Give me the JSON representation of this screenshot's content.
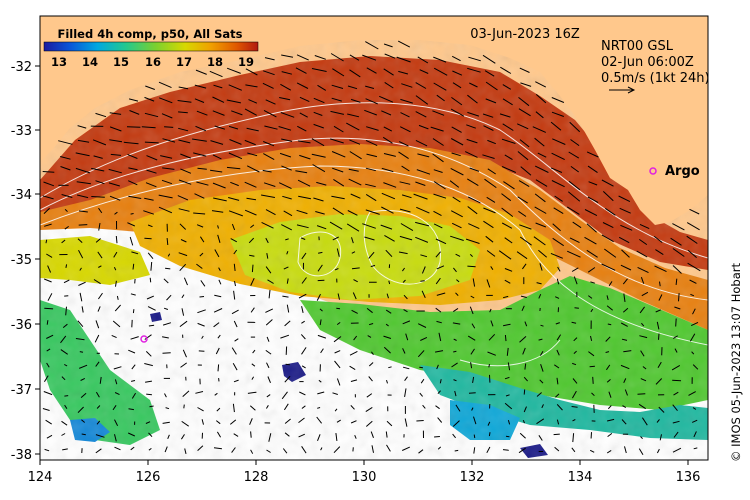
{
  "legend": {
    "title": "Filled 4h comp, p50, All Sats",
    "ticks": [
      "13",
      "14",
      "15",
      "16",
      "17",
      "18",
      "19"
    ],
    "colors": [
      "#1a1aa0",
      "#0a55d8",
      "#00a8e0",
      "#22c890",
      "#7ad030",
      "#d8d800",
      "#f0a000",
      "#e05800",
      "#b01810"
    ]
  },
  "date_label": "03-Jun-2023 16Z",
  "current_info": {
    "line1": "NRT00 GSL",
    "line2": "02-Jun 06:00Z",
    "line3": "0.5m/s (1kt 24h)"
  },
  "argo_label": "Argo",
  "credit": "© IMOS 05-Jun-2023 13:07 Hobart",
  "x_ticks": [
    "124",
    "126",
    "128",
    "130",
    "132",
    "134",
    "136"
  ],
  "y_ticks": [
    "-32",
    "-33",
    "-34",
    "-35",
    "-36",
    "-37",
    "-38"
  ],
  "colors": {
    "land": "#ffc88c",
    "argo": "#e020e0",
    "contour": "#ffffff",
    "arrows": "#000000"
  }
}
